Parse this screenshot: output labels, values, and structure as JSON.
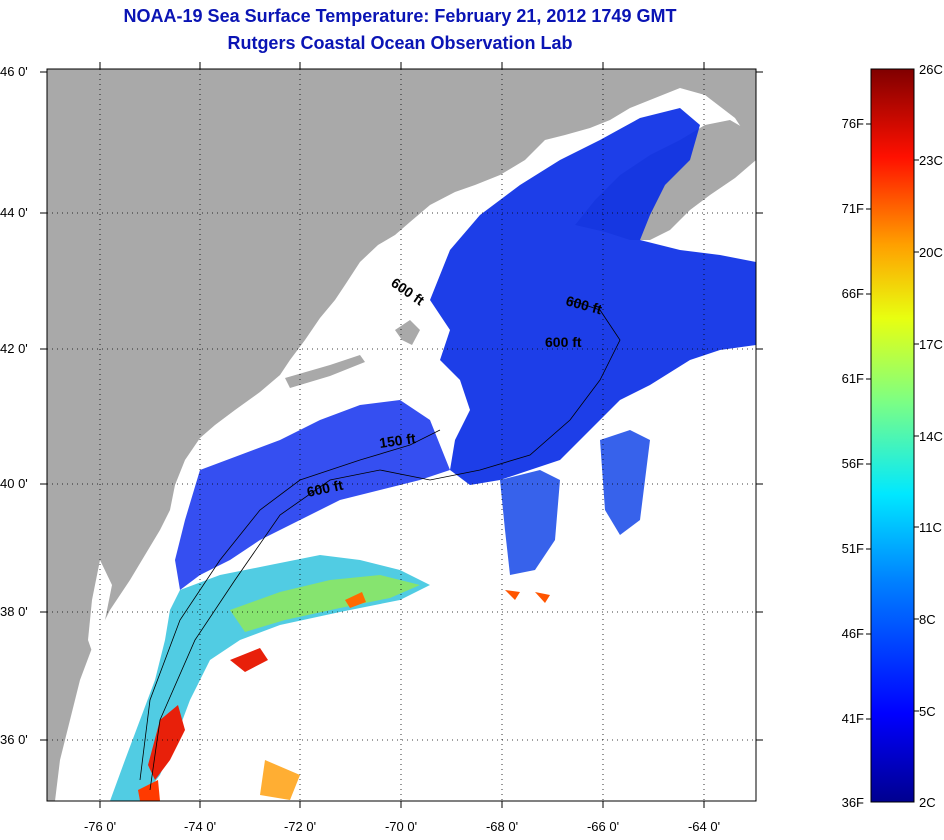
{
  "title": {
    "line1": "NOAA-19 Sea Surface Temperature:  February 21, 2012 1749 GMT",
    "line2": "Rutgers Coastal Ocean Observation Lab"
  },
  "axes": {
    "lat_labels": [
      "46 0'",
      "44 0'",
      "42 0'",
      "40 0'",
      "38 0'",
      "36 0'"
    ],
    "lon_labels": [
      "-76 0'",
      "-74 0'",
      "-72 0'",
      "-70 0'",
      "-68 0'",
      "-66 0'",
      "-64 0'"
    ]
  },
  "contours": {
    "labels": [
      "600 ft",
      "600 ft",
      "600 ft",
      "150 ft",
      "600 ft"
    ]
  },
  "colorbar": {
    "fahrenheit": [
      "76F",
      "71F",
      "66F",
      "61F",
      "56F",
      "51F",
      "46F",
      "41F",
      "36F"
    ],
    "celsius": [
      "26C",
      "23C",
      "20C",
      "17C",
      "14C",
      "11C",
      "8C",
      "5C",
      "2C"
    ]
  },
  "colors": {
    "land": "#a9a9a9",
    "cloud": "#ffffff",
    "title": "#0a14b4"
  }
}
